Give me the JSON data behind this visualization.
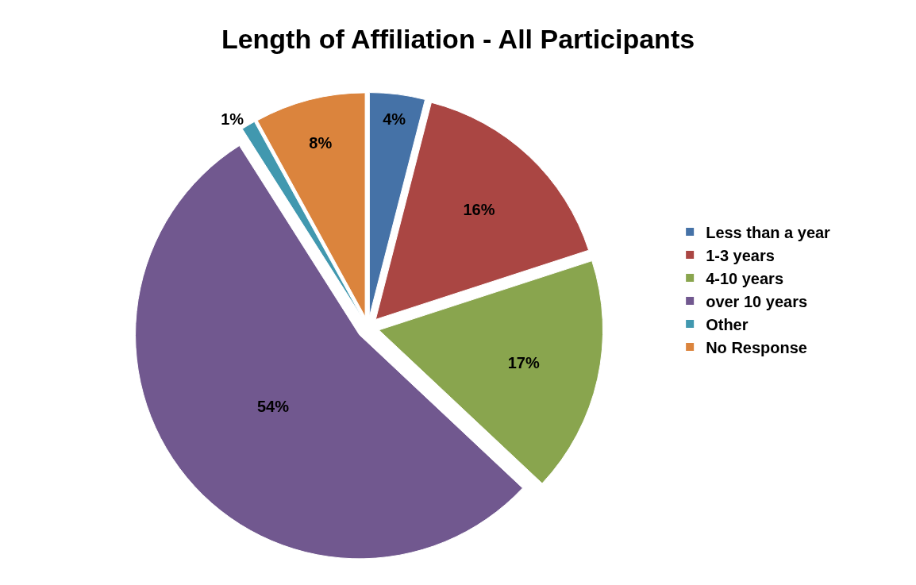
{
  "chart_data": {
    "type": "pie",
    "title": "Length of Affiliation - All Participants",
    "categories": [
      "Less than a year",
      "1-3 years",
      "4-10 years",
      "over 10 years",
      "Other",
      "No Response"
    ],
    "values": [
      4,
      16,
      17,
      54,
      1,
      8
    ],
    "value_labels": [
      "4%",
      "16%",
      "17%",
      "54%",
      "1%",
      "8%"
    ],
    "colors": [
      "#4572a7",
      "#aa4643",
      "#89a54e",
      "#71588f",
      "#4198af",
      "#db843d"
    ],
    "legend": "right"
  }
}
